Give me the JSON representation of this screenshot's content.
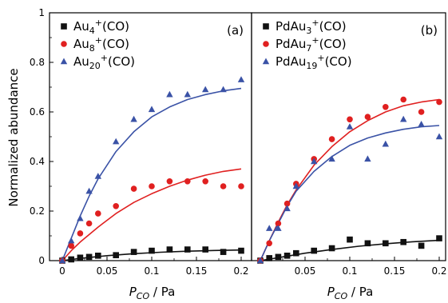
{
  "colors": {
    "black": "#111111",
    "red": "#e02020",
    "blue": "#3a52a6"
  },
  "ylabel": "Normalized abundance",
  "chart_data": [
    {
      "type": "scatter",
      "panel_label": "(a)",
      "xlabel_main": "P",
      "xlabel_sub": "CO",
      "xlabel_rest": " / Pa",
      "xlim": [
        0,
        0.2
      ],
      "ylim": [
        0,
        1
      ],
      "x_ticks": [
        "0",
        "0.05",
        "0.1",
        "0.15",
        "0.2"
      ],
      "y_ticks": [
        "0",
        "0.2",
        "0.4",
        "0.6",
        "0.8",
        "1"
      ],
      "legend": "top-left",
      "series": [
        {
          "name_base": "Au",
          "name_sub": "4",
          "name_sup": "+",
          "name_rest": "(CO)",
          "marker": "square",
          "color": "#111111",
          "x": [
            0,
            0.01,
            0.02,
            0.03,
            0.04,
            0.06,
            0.08,
            0.1,
            0.12,
            0.14,
            0.16,
            0.18,
            0.2
          ],
          "y": [
            0.0,
            0.005,
            0.012,
            0.015,
            0.02,
            0.022,
            0.035,
            0.04,
            0.045,
            0.045,
            0.045,
            0.035,
            0.04
          ],
          "fit": [
            [
              0,
              0
            ],
            [
              0.02,
              0.009
            ],
            [
              0.05,
              0.02
            ],
            [
              0.08,
              0.028
            ],
            [
              0.11,
              0.034
            ],
            [
              0.14,
              0.038
            ],
            [
              0.17,
              0.041
            ],
            [
              0.2,
              0.043
            ]
          ]
        },
        {
          "name_base": "Au",
          "name_sub": "8",
          "name_sup": "+",
          "name_rest": "(CO)",
          "marker": "circle",
          "color": "#e02020",
          "x": [
            0,
            0.01,
            0.02,
            0.03,
            0.04,
            0.06,
            0.08,
            0.1,
            0.12,
            0.14,
            0.16,
            0.18,
            0.2
          ],
          "y": [
            0.0,
            0.06,
            0.11,
            0.15,
            0.19,
            0.22,
            0.29,
            0.3,
            0.32,
            0.32,
            0.32,
            0.3,
            0.3
          ],
          "fit": [
            [
              0,
              0
            ],
            [
              0.01,
              0.04
            ],
            [
              0.02,
              0.075
            ],
            [
              0.04,
              0.135
            ],
            [
              0.06,
              0.19
            ],
            [
              0.08,
              0.235
            ],
            [
              0.1,
              0.27
            ],
            [
              0.12,
              0.3
            ],
            [
              0.14,
              0.325
            ],
            [
              0.16,
              0.345
            ],
            [
              0.18,
              0.36
            ],
            [
              0.2,
              0.37
            ]
          ]
        },
        {
          "name_base": "Au",
          "name_sub": "20",
          "name_sup": "+",
          "name_rest": "(CO)",
          "marker": "triangle",
          "color": "#3a52a6",
          "x": [
            0,
            0.01,
            0.02,
            0.03,
            0.04,
            0.06,
            0.08,
            0.1,
            0.12,
            0.14,
            0.16,
            0.18,
            0.2
          ],
          "y": [
            0.0,
            0.08,
            0.17,
            0.28,
            0.34,
            0.48,
            0.57,
            0.61,
            0.67,
            0.67,
            0.69,
            0.69,
            0.73
          ],
          "fit": [
            [
              0,
              0
            ],
            [
              0.01,
              0.09
            ],
            [
              0.02,
              0.18
            ],
            [
              0.03,
              0.26
            ],
            [
              0.04,
              0.33
            ],
            [
              0.06,
              0.44
            ],
            [
              0.08,
              0.52
            ],
            [
              0.1,
              0.58
            ],
            [
              0.12,
              0.62
            ],
            [
              0.14,
              0.65
            ],
            [
              0.16,
              0.67
            ],
            [
              0.18,
              0.685
            ],
            [
              0.2,
              0.695
            ]
          ]
        }
      ]
    },
    {
      "type": "scatter",
      "panel_label": "(b)",
      "xlabel_main": "P",
      "xlabel_sub": "CO",
      "xlabel_rest": " / Pa",
      "xlim": [
        0,
        0.2
      ],
      "ylim": [
        0,
        1
      ],
      "x_ticks": [
        "0.05",
        "0.1",
        "0.15",
        "0.2"
      ],
      "legend": "top-left",
      "series": [
        {
          "name_base": "PdAu",
          "name_sub": "3",
          "name_sup": "+",
          "name_rest": "(CO)",
          "marker": "square",
          "color": "#111111",
          "x": [
            0,
            0.01,
            0.02,
            0.03,
            0.04,
            0.06,
            0.08,
            0.1,
            0.12,
            0.14,
            0.16,
            0.18,
            0.2
          ],
          "y": [
            0.0,
            0.01,
            0.015,
            0.02,
            0.03,
            0.04,
            0.05,
            0.085,
            0.07,
            0.07,
            0.075,
            0.06,
            0.09
          ],
          "fit": [
            [
              0,
              0
            ],
            [
              0.02,
              0.012
            ],
            [
              0.05,
              0.03
            ],
            [
              0.08,
              0.045
            ],
            [
              0.11,
              0.058
            ],
            [
              0.14,
              0.068
            ],
            [
              0.17,
              0.076
            ],
            [
              0.2,
              0.082
            ]
          ]
        },
        {
          "name_base": "PdAu",
          "name_sub": "7",
          "name_sup": "+",
          "name_rest": "(CO)",
          "marker": "circle",
          "color": "#e02020",
          "x": [
            0,
            0.01,
            0.02,
            0.03,
            0.04,
            0.06,
            0.08,
            0.1,
            0.12,
            0.14,
            0.16,
            0.18,
            0.2
          ],
          "y": [
            0.0,
            0.07,
            0.15,
            0.23,
            0.31,
            0.41,
            0.49,
            0.57,
            0.58,
            0.62,
            0.65,
            0.6,
            0.64
          ],
          "fit": [
            [
              0,
              0
            ],
            [
              0.01,
              0.08
            ],
            [
              0.02,
              0.155
            ],
            [
              0.03,
              0.225
            ],
            [
              0.04,
              0.285
            ],
            [
              0.06,
              0.385
            ],
            [
              0.08,
              0.46
            ],
            [
              0.1,
              0.52
            ],
            [
              0.12,
              0.565
            ],
            [
              0.14,
              0.6
            ],
            [
              0.16,
              0.625
            ],
            [
              0.18,
              0.64
            ],
            [
              0.2,
              0.65
            ]
          ]
        },
        {
          "name_base": "PdAu",
          "name_sub": "19",
          "name_sup": "+",
          "name_rest": "(CO)",
          "marker": "triangle",
          "color": "#3a52a6",
          "x": [
            0,
            0.01,
            0.02,
            0.03,
            0.04,
            0.06,
            0.08,
            0.1,
            0.12,
            0.14,
            0.16,
            0.18,
            0.2
          ],
          "y": [
            0.0,
            0.13,
            0.13,
            0.21,
            0.3,
            0.4,
            0.41,
            0.54,
            0.41,
            0.47,
            0.57,
            0.55,
            0.5
          ],
          "fit": [
            [
              0,
              0
            ],
            [
              0.01,
              0.08
            ],
            [
              0.02,
              0.15
            ],
            [
              0.03,
              0.22
            ],
            [
              0.04,
              0.28
            ],
            [
              0.06,
              0.36
            ],
            [
              0.08,
              0.42
            ],
            [
              0.1,
              0.465
            ],
            [
              0.12,
              0.495
            ],
            [
              0.14,
              0.515
            ],
            [
              0.16,
              0.53
            ],
            [
              0.18,
              0.54
            ],
            [
              0.2,
              0.545
            ]
          ]
        }
      ]
    }
  ]
}
